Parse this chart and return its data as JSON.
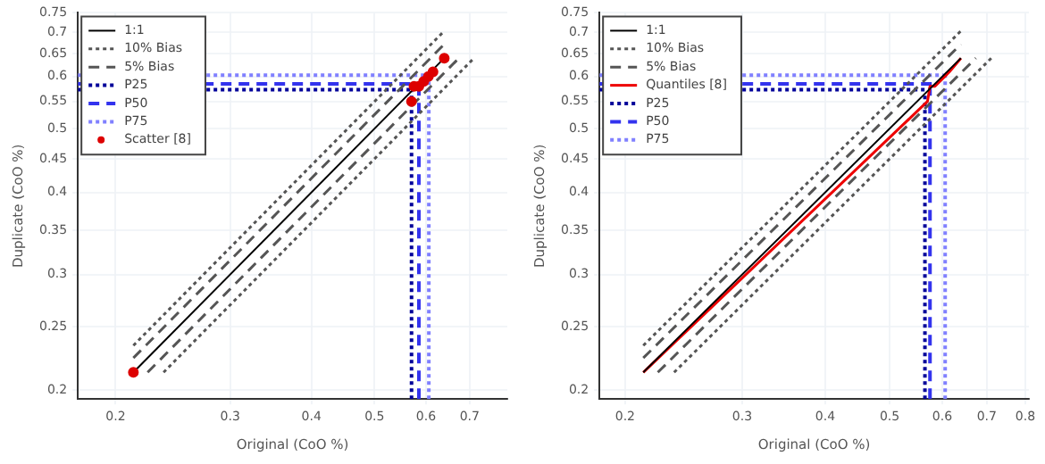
{
  "chart_data": [
    {
      "type": "line",
      "xlabel": "Original (CoO %)",
      "ylabel": "Duplicate (CoO %)",
      "log": "xy",
      "grid": true,
      "legend": "top left",
      "xlim": [
        0.175,
        0.8
      ],
      "ylim": [
        0.194,
        0.75
      ],
      "xticks": [
        0.2,
        0.3,
        0.4,
        0.5,
        0.6,
        0.7
      ],
      "yticks": [
        0.2,
        0.25,
        0.3,
        0.35,
        0.4,
        0.45,
        0.5,
        0.55,
        0.6,
        0.65,
        0.7,
        0.75
      ],
      "series": [
        {
          "name": "1:1",
          "type": "line",
          "color": "#000000",
          "line_style": "solid",
          "x": [
            0.213,
            0.64
          ],
          "values": [
            0.213,
            0.64
          ]
        },
        {
          "name": "10% Bias",
          "type": "line",
          "color": "#555555",
          "line_style": "dotted",
          "x": [
            0.213,
            0.64
          ],
          "values": [
            0.234,
            0.704
          ]
        },
        {
          "type": "line",
          "color": "#555555",
          "line_style": "dotted",
          "x": [
            0.237,
            0.711
          ],
          "values": [
            0.213,
            0.64
          ]
        },
        {
          "name": "5% Bias",
          "type": "line",
          "color": "#555555",
          "line_style": "dashed",
          "x": [
            0.213,
            0.64
          ],
          "values": [
            0.224,
            0.672
          ]
        },
        {
          "type": "line",
          "color": "#555555",
          "line_style": "dashed",
          "x": [
            0.224,
            0.674
          ],
          "values": [
            0.213,
            0.64
          ]
        },
        {
          "name": "Scatter [8]",
          "type": "scatter",
          "color": "#dd0000",
          "marker": "circle",
          "x": [
            0.213,
            0.57,
            0.575,
            0.585,
            0.595,
            0.605,
            0.615,
            0.64
          ],
          "values": [
            0.213,
            0.55,
            0.58,
            0.58,
            0.59,
            0.6,
            0.61,
            0.64
          ]
        }
      ],
      "ref_lines": [
        {
          "axis": "y",
          "value": 0.573,
          "label": "P25",
          "color": "#000099",
          "line_style": "dotted"
        },
        {
          "axis": "y",
          "value": 0.585,
          "label": "P50",
          "color": "#3333ee",
          "line_style": "dashed"
        },
        {
          "axis": "y",
          "value": 0.603,
          "label": "P75",
          "color": "#8080ff",
          "line_style": "dotted"
        },
        {
          "axis": "x",
          "value": 0.57,
          "color": "#000099",
          "line_style": "dotted"
        },
        {
          "axis": "x",
          "value": 0.585,
          "color": "#3333ee",
          "line_style": "dashed"
        },
        {
          "axis": "x",
          "value": 0.606,
          "color": "#8080ff",
          "line_style": "dotted"
        }
      ]
    },
    {
      "type": "line",
      "xlabel": "Original (CoO %)",
      "ylabel": "Duplicate (CoO %)",
      "log": "xy",
      "grid": true,
      "legend": "top left",
      "xlim": [
        0.183,
        0.81
      ],
      "ylim": [
        0.194,
        0.75
      ],
      "xticks": [
        0.2,
        0.3,
        0.4,
        0.5,
        0.6,
        0.7,
        0.8
      ],
      "yticks": [
        0.2,
        0.25,
        0.3,
        0.35,
        0.4,
        0.45,
        0.5,
        0.55,
        0.6,
        0.65,
        0.7,
        0.75
      ],
      "series": [
        {
          "name": "1:1",
          "type": "line",
          "color": "#000000",
          "line_style": "solid",
          "x": [
            0.213,
            0.64
          ],
          "values": [
            0.213,
            0.64
          ]
        },
        {
          "name": "10% Bias",
          "type": "line",
          "color": "#555555",
          "line_style": "dotted",
          "x": [
            0.213,
            0.64
          ],
          "values": [
            0.234,
            0.704
          ]
        },
        {
          "type": "line",
          "color": "#555555",
          "line_style": "dotted",
          "x": [
            0.237,
            0.711
          ],
          "values": [
            0.213,
            0.64
          ]
        },
        {
          "name": "5% Bias",
          "type": "line",
          "color": "#555555",
          "line_style": "dashed",
          "x": [
            0.213,
            0.64
          ],
          "values": [
            0.224,
            0.672
          ]
        },
        {
          "type": "line",
          "color": "#555555",
          "line_style": "dashed",
          "x": [
            0.224,
            0.674
          ],
          "values": [
            0.213,
            0.64
          ]
        },
        {
          "name": "Quantiles [8]",
          "type": "line",
          "color": "#ee0000",
          "line_style": "solid",
          "x": [
            0.213,
            0.57,
            0.575,
            0.585,
            0.595,
            0.605,
            0.615,
            0.64
          ],
          "values": [
            0.213,
            0.55,
            0.58,
            0.58,
            0.59,
            0.6,
            0.61,
            0.64
          ]
        }
      ],
      "ref_lines": [
        {
          "axis": "y",
          "value": 0.573,
          "label": "P25",
          "color": "#000099",
          "line_style": "dotted"
        },
        {
          "axis": "y",
          "value": 0.585,
          "label": "P50",
          "color": "#3333ee",
          "line_style": "dashed"
        },
        {
          "axis": "y",
          "value": 0.603,
          "label": "P75",
          "color": "#8080ff",
          "line_style": "dotted"
        },
        {
          "axis": "x",
          "value": 0.565,
          "color": "#000099",
          "line_style": "dotted"
        },
        {
          "axis": "x",
          "value": 0.575,
          "color": "#3333ee",
          "line_style": "dashed"
        },
        {
          "axis": "x",
          "value": 0.606,
          "color": "#8080ff",
          "line_style": "dotted"
        }
      ]
    }
  ]
}
